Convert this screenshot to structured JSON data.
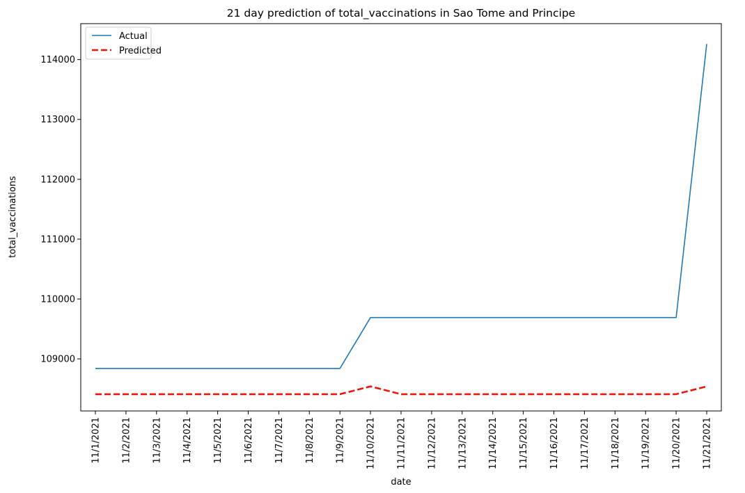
{
  "chart_data": {
    "type": "line",
    "title": "21 day prediction of total_vaccinations in Sao Tome and Principe",
    "xlabel": "date",
    "ylabel": "total_vaccinations",
    "categories": [
      "11/1/2021",
      "11/2/2021",
      "11/3/2021",
      "11/4/2021",
      "11/5/2021",
      "11/6/2021",
      "11/7/2021",
      "11/8/2021",
      "11/9/2021",
      "11/10/2021",
      "11/11/2021",
      "11/12/2021",
      "11/13/2021",
      "11/14/2021",
      "11/15/2021",
      "11/16/2021",
      "11/17/2021",
      "11/18/2021",
      "11/19/2021",
      "11/20/2021",
      "11/21/2021"
    ],
    "ylim": [
      108130,
      114600
    ],
    "yticks": [
      109000,
      110000,
      111000,
      112000,
      113000,
      114000
    ],
    "grid": false,
    "legend_position": "upper-left",
    "series": [
      {
        "name": "Actual",
        "color": "#1f77b4",
        "style": "solid",
        "values": [
          108840,
          108840,
          108840,
          108840,
          108840,
          108840,
          108840,
          108840,
          108840,
          109690,
          109690,
          109690,
          109690,
          109690,
          109690,
          109690,
          109690,
          109690,
          109690,
          109690,
          114260
        ]
      },
      {
        "name": "Predicted",
        "color": "#e8160c",
        "style": "dashed",
        "values": [
          108410,
          108410,
          108410,
          108410,
          108410,
          108410,
          108410,
          108410,
          108410,
          108540,
          108410,
          108410,
          108410,
          108410,
          108410,
          108410,
          108410,
          108410,
          108410,
          108410,
          108540
        ]
      }
    ]
  }
}
